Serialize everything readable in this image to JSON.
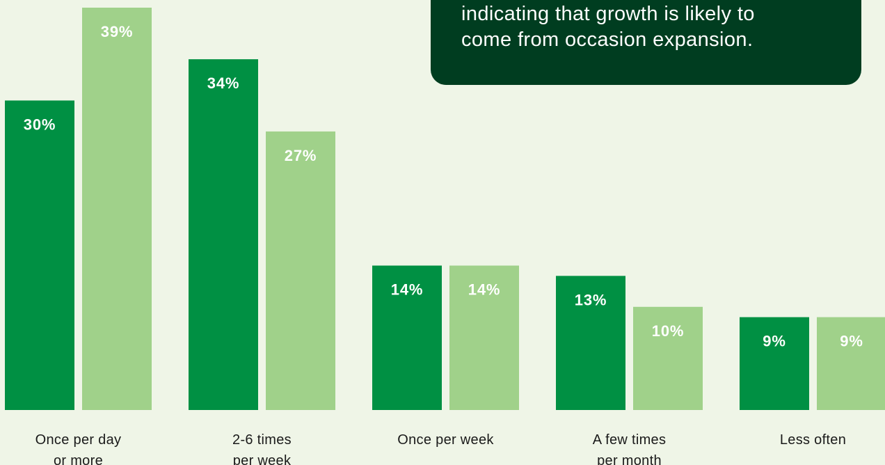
{
  "callout": {
    "lines": [
      "indicating that growth is likely to",
      "come from occasion expansion."
    ]
  },
  "colors": {
    "background": "#eff5e7",
    "dark_series": "#009043",
    "light_series": "#a0d18a",
    "callout_bg": "#003d20",
    "label_text": "#ffffff",
    "category_text": "#1a1a1a"
  },
  "chart_data": {
    "type": "bar",
    "categories": [
      [
        "Once per day",
        "or more"
      ],
      [
        "2-6 times",
        "per week"
      ],
      [
        "Once per week"
      ],
      [
        "A few times",
        "per month"
      ],
      [
        "Less often"
      ]
    ],
    "series": [
      {
        "values": [
          30,
          34,
          14,
          13,
          9
        ],
        "labels": [
          "30%",
          "34%",
          "14%",
          "13%",
          "9%"
        ],
        "color": "#009043"
      },
      {
        "values": [
          39,
          27,
          14,
          10,
          9
        ],
        "labels": [
          "39%",
          "27%",
          "14%",
          "10%",
          "9%"
        ],
        "color": "#a0d18a"
      }
    ],
    "ylim": [
      0,
      39
    ],
    "grid": false,
    "legend": "none"
  }
}
